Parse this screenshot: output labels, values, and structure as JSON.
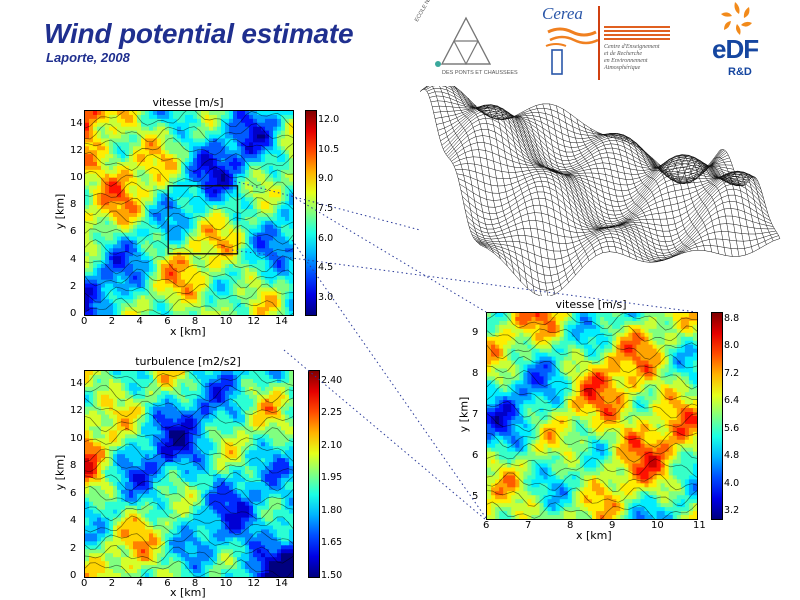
{
  "header": {
    "title": "Wind potential estimate",
    "subtitle": "Laporte, 2008"
  },
  "logos": {
    "enpc_lines": [
      "ECOLE NATIONALE",
      "DES PONTS ET CHAUSSEES"
    ],
    "cerea_name": "Cerea",
    "cerea_tagline": [
      "Centre d'Enseignement",
      "et de Recherche",
      "en Environnement",
      "Atmosphérique"
    ],
    "edf_name": "eDF",
    "edf_sub": "R&D"
  },
  "colors": {
    "title": "#1f2f8f",
    "dotted_link": "#2a3a9a",
    "colormap": [
      "#00007f",
      "#0000ff",
      "#007fff",
      "#00ffff",
      "#7fff7f",
      "#ffff00",
      "#ff7f00",
      "#ff0000",
      "#7f0000"
    ]
  },
  "chart_data": [
    {
      "type": "heatmap",
      "title": "vitesse [m/s]",
      "xlabel": "x [km]",
      "ylabel": "y [km]",
      "x_ticks": [
        "0",
        "2",
        "4",
        "6",
        "8",
        "10",
        "12",
        "14"
      ],
      "y_ticks": [
        "0",
        "2",
        "4",
        "6",
        "8",
        "10",
        "12",
        "14"
      ],
      "xlim": [
        0,
        15
      ],
      "ylim": [
        0,
        15
      ],
      "colorbar": {
        "ticks": [
          "12.0",
          "10.5",
          "9.0",
          "7.5",
          "6.0",
          "4.5",
          "3.0"
        ],
        "range": [
          2.2,
          12.5
        ]
      },
      "zoom_box_km": {
        "x": [
          6,
          11
        ],
        "y": [
          4.5,
          9.5
        ]
      }
    },
    {
      "type": "heatmap",
      "title": "turbulence [m2/s2]",
      "xlabel": "x [km]",
      "ylabel": "y [km]",
      "x_ticks": [
        "0",
        "2",
        "4",
        "6",
        "8",
        "10",
        "12",
        "14"
      ],
      "y_ticks": [
        "0",
        "2",
        "4",
        "6",
        "8",
        "10",
        "12",
        "14"
      ],
      "xlim": [
        0,
        15
      ],
      "ylim": [
        0,
        15
      ],
      "colorbar": {
        "ticks": [
          "2.40",
          "2.25",
          "2.10",
          "1.95",
          "1.80",
          "1.65",
          "1.50"
        ],
        "range": [
          1.5,
          2.45
        ]
      }
    },
    {
      "type": "heatmap",
      "title": "vitesse [m/s]",
      "xlabel": "x [km]",
      "ylabel": "y [km]",
      "x_ticks": [
        "6",
        "7",
        "8",
        "9",
        "10",
        "11"
      ],
      "y_ticks": [
        "5",
        "6",
        "7",
        "8",
        "9"
      ],
      "xlim": [
        6,
        11
      ],
      "ylim": [
        4.5,
        9.5
      ],
      "colorbar": {
        "ticks": [
          "8.8",
          "8.0",
          "7.2",
          "6.4",
          "5.6",
          "4.8",
          "4.0",
          "3.2"
        ],
        "range": [
          3.0,
          9.0
        ]
      }
    },
    {
      "type": "surface-wireframe",
      "title": ""
    }
  ]
}
